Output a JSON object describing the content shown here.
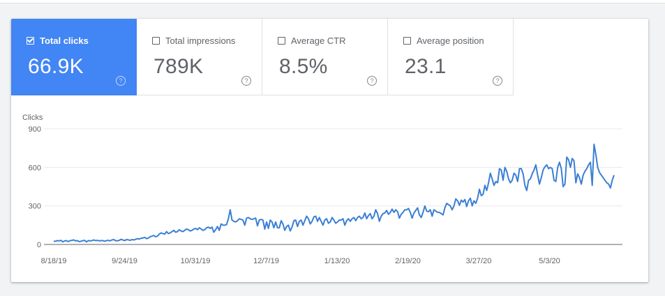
{
  "metrics": [
    {
      "label": "Total clicks",
      "value": "66.9K",
      "active": true,
      "help": "?"
    },
    {
      "label": "Total impressions",
      "value": "789K",
      "active": false,
      "help": "?"
    },
    {
      "label": "Average CTR",
      "value": "8.5%",
      "active": false,
      "help": "?"
    },
    {
      "label": "Average position",
      "value": "23.1",
      "active": false,
      "help": "?"
    }
  ],
  "colors": {
    "accent": "#4285f4",
    "line": "#3b7fd4",
    "grid": "#e8eaed"
  },
  "chart_data": {
    "type": "line",
    "ylabel": "Clicks",
    "ylim": [
      0,
      900
    ],
    "yticks": [
      0,
      300,
      600,
      900
    ],
    "xtick_labels": [
      "8/18/19",
      "9/24/19",
      "10/31/19",
      "12/7/19",
      "1/13/20",
      "2/19/20",
      "3/27/20",
      "5/3/20"
    ],
    "xlim_days": [
      0,
      306
    ],
    "grid": true,
    "series": [
      {
        "name": "",
        "values": [
          25,
          25,
          30,
          28,
          32,
          20,
          28,
          30,
          22,
          30,
          32,
          35,
          28,
          30,
          22,
          25,
          30,
          32,
          20,
          30,
          28,
          30,
          35,
          30,
          32,
          28,
          30,
          30,
          25,
          30,
          32,
          28,
          35,
          38,
          30,
          28,
          32,
          40,
          35,
          30,
          38,
          36,
          32,
          38,
          35,
          40,
          45,
          42,
          48,
          50,
          55,
          45,
          50,
          60,
          65,
          70,
          60,
          65,
          80,
          90,
          85,
          80,
          100,
          85,
          90,
          100,
          110,
          95,
          100,
          115,
          105,
          100,
          110,
          120,
          115,
          105,
          110,
          120,
          125,
          115,
          130,
          120,
          110,
          115,
          130,
          135,
          125,
          135,
          95,
          115,
          140,
          110,
          160,
          150,
          150,
          155,
          200,
          270,
          190,
          180,
          175,
          185,
          200,
          195,
          190,
          150,
          205,
          210,
          200,
          195,
          200,
          205,
          145,
          190,
          195,
          190,
          120,
          175,
          125,
          190,
          175,
          130,
          175,
          130,
          130,
          185,
          160,
          110,
          140,
          150,
          105,
          135,
          185,
          190,
          140,
          180,
          190,
          150,
          185,
          220,
          200,
          160,
          180,
          215,
          220,
          180,
          210,
          180,
          150,
          190,
          200,
          165,
          175,
          210,
          190,
          165,
          175,
          190,
          190,
          200,
          150,
          185,
          200,
          180,
          200,
          210,
          185,
          210,
          220,
          200,
          210,
          245,
          200,
          225,
          240,
          200,
          220,
          270,
          240,
          180,
          220,
          240,
          245,
          265,
          235,
          250,
          275,
          250,
          270,
          255,
          205,
          235,
          250,
          270,
          270,
          280,
          250,
          205,
          245,
          265,
          285,
          230,
          210,
          250,
          300,
          260,
          255,
          270,
          220,
          270,
          260,
          250,
          250,
          240,
          230,
          285,
          320,
          310,
          300,
          270,
          300,
          355,
          340,
          305,
          345,
          330,
          350,
          295,
          340,
          360,
          300,
          340,
          320,
          360,
          430,
          380,
          390,
          460,
          420,
          480,
          555,
          510,
          460,
          490,
          480,
          590,
          580,
          500,
          600,
          570,
          510,
          480,
          500,
          555,
          540,
          490,
          590,
          590,
          550,
          460,
          420,
          500,
          510,
          550,
          580,
          620,
          540,
          470,
          520,
          580,
          605,
          620,
          590,
          600,
          590,
          500,
          490,
          600,
          640,
          590,
          450,
          470,
          680,
          660,
          600,
          670,
          650,
          480,
          550,
          520,
          470,
          540,
          570,
          590,
          620,
          640,
          460,
          780,
          700,
          600,
          560,
          540,
          520,
          500,
          480,
          470,
          440,
          500,
          540
        ]
      }
    ]
  }
}
